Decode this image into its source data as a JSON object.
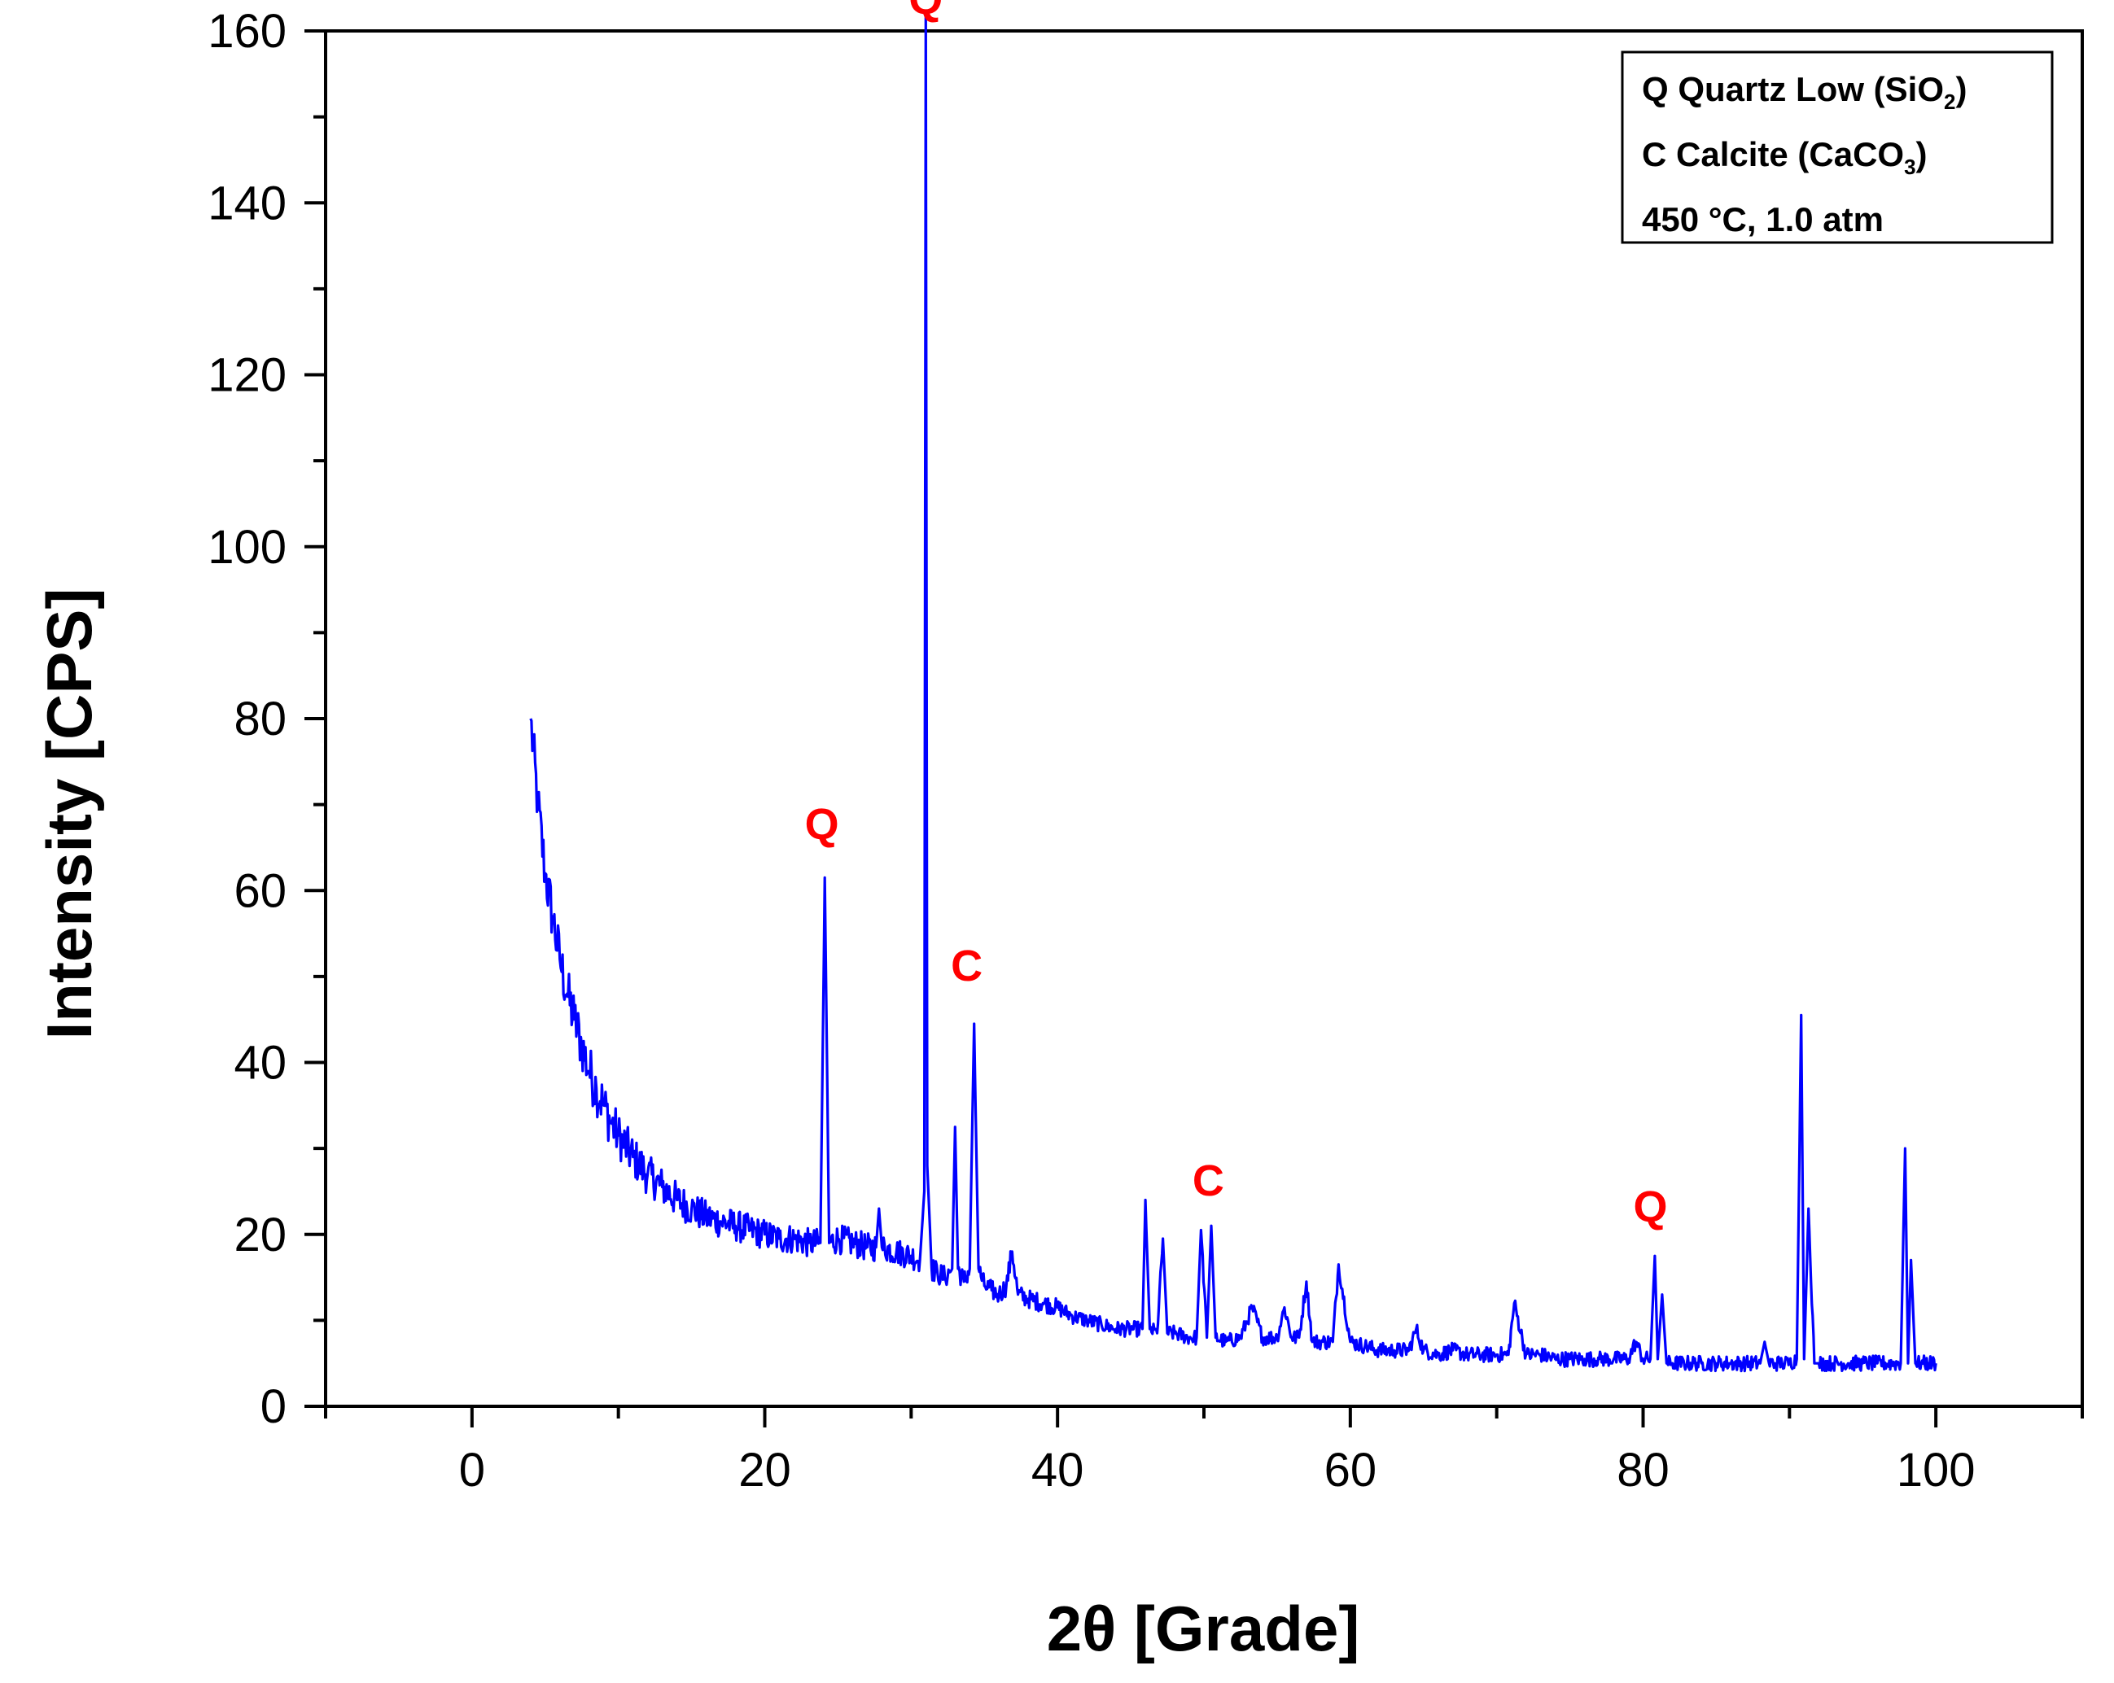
{
  "chart_data": {
    "type": "line",
    "title": "",
    "xlabel": "2θ [Grade]",
    "ylabel": "Intensity [CPS]",
    "xlim": [
      -10,
      110
    ],
    "ylim": [
      0,
      160
    ],
    "x_ticks": [
      0,
      20,
      40,
      60,
      80,
      100
    ],
    "y_ticks": [
      0,
      20,
      40,
      60,
      80,
      100,
      120,
      140,
      160
    ],
    "x_tick_labels": [
      "0",
      "20",
      "40",
      "60",
      "80",
      "100"
    ],
    "y_tick_labels": [
      "0",
      "20",
      "40",
      "60",
      "80",
      "100",
      "120",
      "140",
      "160"
    ],
    "grid": false,
    "series": [
      {
        "color": "#0000ff",
        "x": [
          4.0,
          4.5,
          5.0,
          5.5,
          6.0,
          6.5,
          7.0,
          7.5,
          8.0,
          8.5,
          9.0,
          9.5,
          10.0,
          11.0,
          12.0,
          13.0,
          14.0,
          15.0,
          16.0,
          17.0,
          18.0,
          19.0,
          20.0,
          21.0,
          22.0,
          23.0,
          23.8,
          24.1,
          24.4,
          25.0,
          26.0,
          27.0,
          27.6,
          27.8,
          28.0,
          29.0,
          30.0,
          30.6,
          30.9,
          31.0,
          31.1,
          31.4,
          31.8,
          32.3,
          32.8,
          33.0,
          33.2,
          33.6,
          34.0,
          34.3,
          34.6,
          35.0,
          35.5,
          36.0,
          36.5,
          36.9,
          37.3,
          38.0,
          39.0,
          40.0,
          41.0,
          42.0,
          43.0,
          44.0,
          45.0,
          45.8,
          46.0,
          46.3,
          46.8,
          47.2,
          47.5,
          48.0,
          49.0,
          49.5,
          49.8,
          50.2,
          50.5,
          50.8,
          51.5,
          52.5,
          53.3,
          54.0,
          55.0,
          55.5,
          56.0,
          56.5,
          57.0,
          57.4,
          58.0,
          58.8,
          59.2,
          60.0,
          61.0,
          62.0,
          63.0,
          64.0,
          64.5,
          65.0,
          66.0,
          67.0,
          68.0,
          69.0,
          70.0,
          70.8,
          71.2,
          72.0,
          73.0,
          74.0,
          75.0,
          76.0,
          77.0,
          78.0,
          79.0,
          79.5,
          80.0,
          80.5,
          80.8,
          81.0,
          81.3,
          81.6,
          82.0,
          83.0,
          84.0,
          85.0,
          86.0,
          87.0,
          88.0,
          88.3,
          88.6,
          89.0,
          89.5,
          90.0,
          90.5,
          90.8,
          91.0,
          91.3,
          91.7,
          92.0,
          93.0,
          94.0,
          95.0,
          96.0,
          97.0,
          97.6,
          97.9,
          98.1,
          98.3,
          98.6,
          99.0,
          99.5,
          100.0
        ],
        "y": [
          80,
          70,
          62,
          57,
          52,
          48,
          45,
          42,
          39,
          37,
          35,
          33,
          31.5,
          29,
          27,
          25.5,
          24,
          23,
          22,
          21.5,
          21,
          20.5,
          20,
          19.5,
          19.5,
          19,
          19,
          61.5,
          19,
          19.5,
          19,
          18.5,
          18.5,
          23,
          18.5,
          18,
          17.5,
          17,
          25,
          162,
          28,
          16,
          15.5,
          15,
          16,
          32.5,
          16,
          14.5,
          16,
          44.5,
          16,
          14,
          13.5,
          13,
          14,
          18,
          13,
          12.5,
          12,
          11.5,
          10.5,
          10,
          9.5,
          9,
          9,
          9,
          24,
          9,
          8.5,
          19.5,
          8.5,
          8.5,
          8,
          8,
          20.5,
          8,
          21,
          8,
          7.5,
          8,
          11.5,
          8,
          8,
          11.5,
          8,
          8,
          14.5,
          7.5,
          7.5,
          7.5,
          16.5,
          7.5,
          7,
          6.5,
          6.5,
          6.5,
          9,
          6.5,
          6,
          6.5,
          6,
          6,
          6,
          6,
          12,
          6,
          6,
          5.5,
          5.5,
          5.5,
          5.5,
          5.5,
          5.5,
          7.5,
          5.5,
          5.5,
          17.5,
          5.5,
          13,
          5,
          5,
          5,
          5,
          5,
          5,
          5,
          5,
          7.5,
          5,
          5,
          5,
          5,
          5.5,
          45.5,
          5.5,
          23,
          5,
          5,
          5,
          5,
          5,
          5,
          5,
          5,
          30,
          5,
          17,
          5,
          5,
          5,
          5
        ]
      }
    ],
    "annotations": [
      {
        "text": "Q",
        "x": 31.0,
        "y": 162,
        "color": "#ff0000"
      },
      {
        "text": "Q",
        "x": 23.9,
        "y": 66,
        "color": "#ff0000"
      },
      {
        "text": "C",
        "x": 33.8,
        "y": 49.5,
        "color": "#ff0000"
      },
      {
        "text": "C",
        "x": 50.3,
        "y": 24.5,
        "color": "#ff0000"
      },
      {
        "text": "Q",
        "x": 80.5,
        "y": 21.5,
        "color": "#ff0000"
      }
    ],
    "legend": {
      "position": "top-right",
      "lines": [
        {
          "main": "Q Quartz Low (SiO",
          "sub": "2",
          "tail": ")"
        },
        {
          "main": "C Calcite (CaCO",
          "sub": "3",
          "tail": ")"
        },
        {
          "main": "450 °C, 1.0 atm",
          "sub": "",
          "tail": ""
        }
      ]
    }
  }
}
